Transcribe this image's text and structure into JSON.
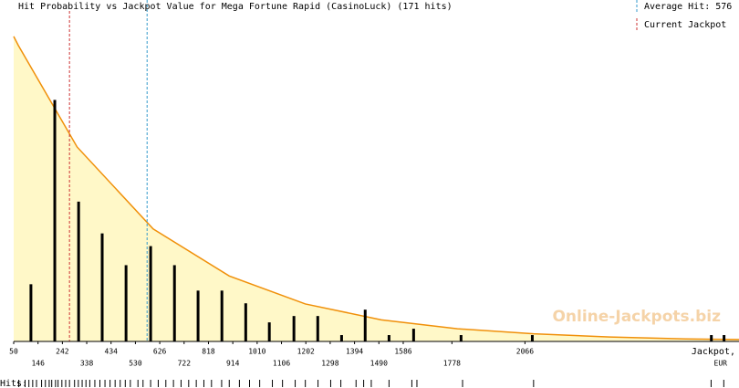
{
  "chart_data": {
    "type": "histogram-curve",
    "title": "Hit Probability vs Jackpot Value for Mega Fortune Rapid (CasinoLuck) (171 hits)",
    "x_label": "Jackpot,",
    "x_unit": "EUR",
    "watermark": "Online-Jackpots.biz",
    "hits_label": "Hits:",
    "xlim": [
      50,
      2910
    ],
    "ylim": [
      0,
      52
    ],
    "xticks": [
      50,
      146,
      242,
      338,
      434,
      530,
      626,
      722,
      818,
      914,
      1010,
      1106,
      1202,
      1298,
      1394,
      1490,
      1586,
      1778,
      2066
    ],
    "bars": {
      "color": "#000000",
      "x": [
        118,
        212,
        306,
        399,
        493,
        590,
        684,
        777,
        871,
        965,
        1058,
        1155,
        1249,
        1343,
        1436,
        1530,
        1627,
        1814,
        2095,
        2801,
        2851
      ],
      "values": [
        9,
        38,
        22,
        17,
        12,
        15,
        12,
        8,
        8,
        6,
        3,
        4,
        4,
        1,
        5,
        1,
        2,
        1,
        1,
        1,
        1
      ]
    },
    "curve": {
      "color": "#f0900a",
      "fill": "#fff8c8",
      "x": [
        50,
        68,
        300,
        600,
        900,
        1200,
        1500,
        1800,
        2100,
        2400,
        2700,
        2910
      ],
      "values": [
        48,
        46.6,
        30.6,
        17.7,
        10.3,
        5.9,
        3.4,
        2.0,
        1.2,
        0.7,
        0.4,
        0.3
      ]
    },
    "average_hit": {
      "label": "Average Hit: 576",
      "value": 576,
      "color": "#3399cc"
    },
    "current_jackpot": {
      "label": "Current Jackpot",
      "value": 270,
      "color": "#cc3333"
    },
    "hits": [
      70,
      95,
      110,
      125,
      140,
      160,
      175,
      190,
      200,
      215,
      225,
      240,
      255,
      270,
      290,
      305,
      320,
      335,
      350,
      370,
      390,
      410,
      430,
      450,
      470,
      490,
      510,
      540,
      560,
      590,
      620,
      650,
      680,
      710,
      740,
      770,
      800,
      830,
      870,
      900,
      940,
      980,
      1020,
      1070,
      1110,
      1160,
      1200,
      1250,
      1300,
      1340,
      1400,
      1430,
      1460,
      1530,
      1620,
      1640,
      1820,
      2100,
      2800,
      2850
    ]
  }
}
